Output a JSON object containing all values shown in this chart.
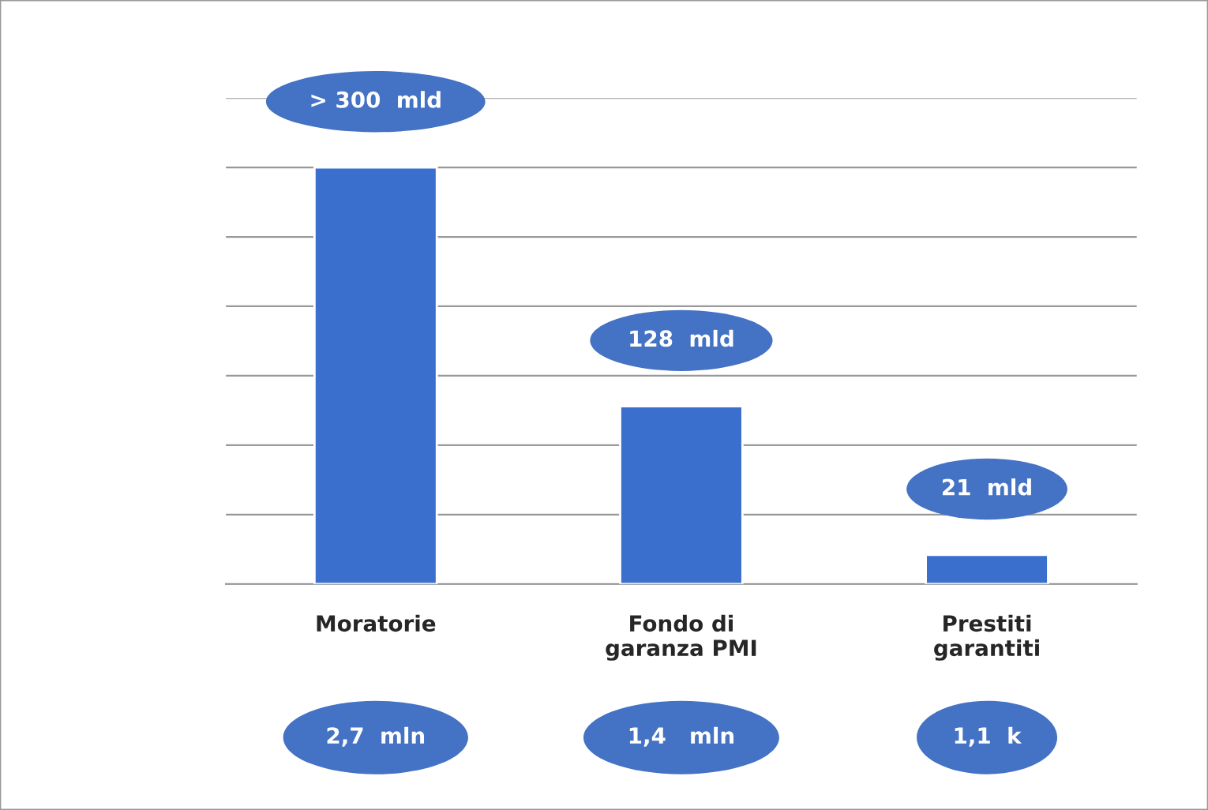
{
  "chart_data": {
    "type": "bar",
    "categories": [
      "Moratorie",
      "Fondo di\ngaranza PMI",
      "Prestiti\ngarantiti"
    ],
    "values": [
      300,
      128,
      21
    ],
    "value_labels": [
      "> 300  mld",
      "128  mld",
      "21  mld"
    ],
    "color": "#3a6fce",
    "ylim": [
      0,
      350
    ],
    "yticks": [
      {
        "value": 50,
        "label": null
      },
      {
        "value": 100,
        "label": null
      },
      {
        "value": 150,
        "label": null
      },
      {
        "value": 200,
        "label": null
      },
      {
        "value": 250,
        "label": null
      },
      {
        "value": 300,
        "label": null
      },
      {
        "value": 350,
        "label": null
      }
    ],
    "grid": "y",
    "tick_labels": "x",
    "legend": false,
    "annotations": [
      "2,7  mln",
      "1,4   mln",
      "1,1  k"
    ]
  }
}
